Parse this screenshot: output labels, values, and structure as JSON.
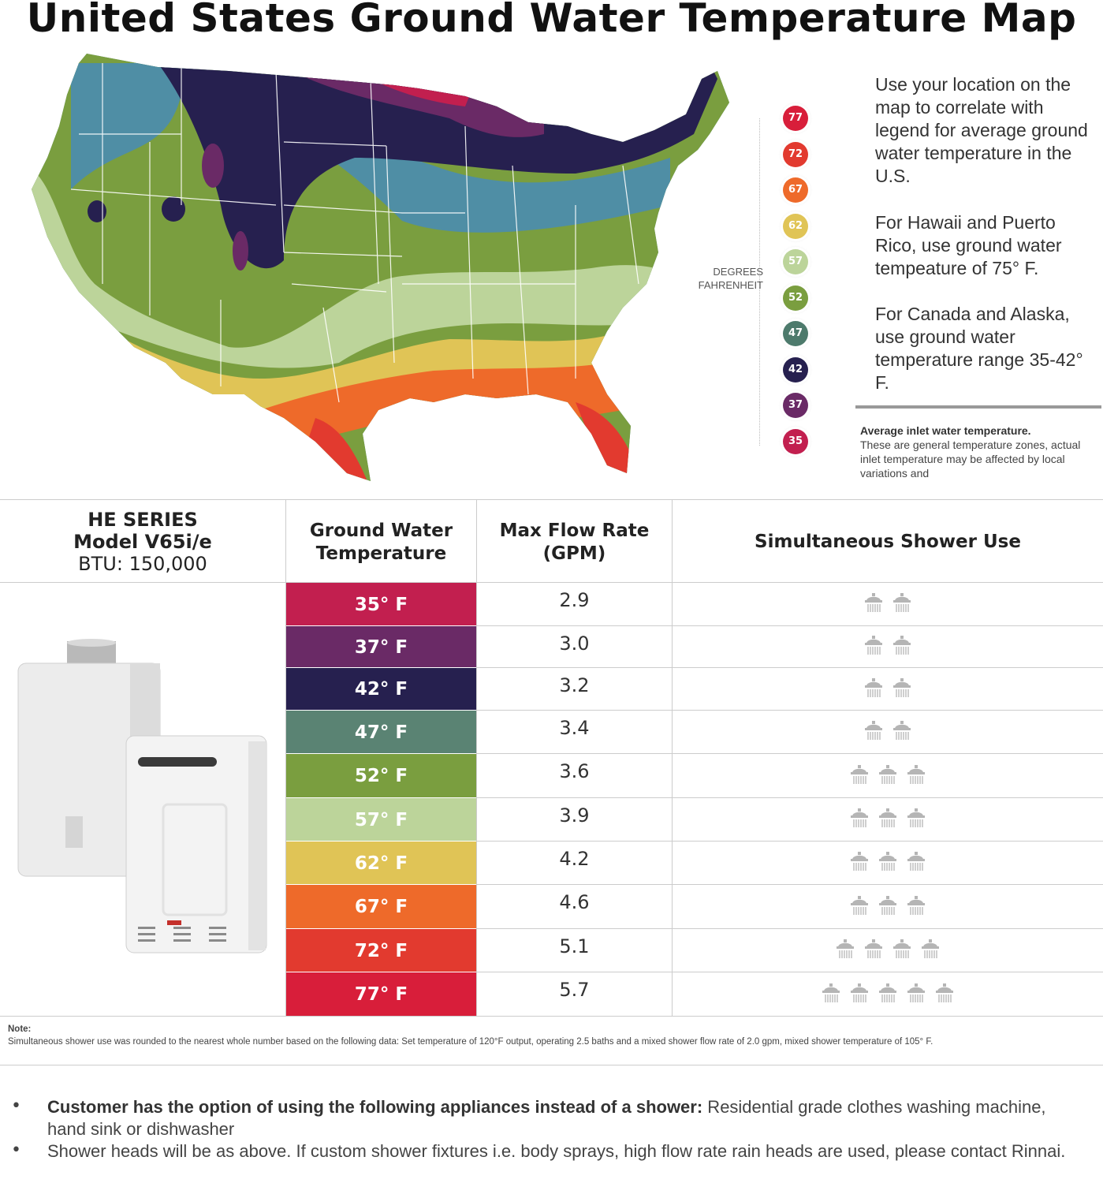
{
  "title": "United States Ground Water Temperature Map",
  "legend": {
    "label_line1": "DEGREES",
    "label_line2": "FAHRENHEIT",
    "items": [
      {
        "value": "77",
        "color": "#d81e3a"
      },
      {
        "value": "72",
        "color": "#e23a2f"
      },
      {
        "value": "67",
        "color": "#ee6a2a"
      },
      {
        "value": "62",
        "color": "#e0c456"
      },
      {
        "value": "57",
        "color": "#bcd49a"
      },
      {
        "value": "52",
        "color": "#7a9e3f"
      },
      {
        "value": "47",
        "color": "#4d7a6c"
      },
      {
        "value": "42",
        "color": "#26204f"
      },
      {
        "value": "37",
        "color": "#6a2a66"
      },
      {
        "value": "35",
        "color": "#c21f4f"
      }
    ]
  },
  "side": {
    "p1": "Use your location on the map to correlate with legend for average ground water temperature in the U.S.",
    "p2": "For Hawaii and Puerto Rico, use ground water tempeature of 75° F.",
    "p3": "For Canada and Alaska, use ground water temperature range 35-42° F.",
    "avg_bold": "Average inlet water temperature.",
    "avg_text": "These are general temperature zones, actual inlet temperature may be affected by local variations and"
  },
  "table": {
    "model_line1": "HE SERIES",
    "model_line2": "Model V65i/e",
    "model_line3": "BTU: 150,000",
    "col_temp": "Ground Water Temperature",
    "col_flow": "Max Flow Rate (GPM)",
    "col_shower": "Simultaneous Shower Use",
    "rows": [
      {
        "temp": "35° F",
        "flow": "2.9",
        "showers": 2,
        "color": "#c21f4f"
      },
      {
        "temp": "37° F",
        "flow": "3.0",
        "showers": 2,
        "color": "#6a2a66"
      },
      {
        "temp": "42° F",
        "flow": "3.2",
        "showers": 2,
        "color": "#26204f"
      },
      {
        "temp": "47° F",
        "flow": "3.4",
        "showers": 2,
        "color": "#5a8373"
      },
      {
        "temp": "52° F",
        "flow": "3.6",
        "showers": 3,
        "color": "#7a9e3f"
      },
      {
        "temp": "57° F",
        "flow": "3.9",
        "showers": 3,
        "color": "#bcd49a"
      },
      {
        "temp": "62° F",
        "flow": "4.2",
        "showers": 3,
        "color": "#e0c456"
      },
      {
        "temp": "67° F",
        "flow": "4.6",
        "showers": 3,
        "color": "#ee6a2a"
      },
      {
        "temp": "72° F",
        "flow": "5.1",
        "showers": 4,
        "color": "#e23a2f"
      },
      {
        "temp": "77° F",
        "flow": "5.7",
        "showers": 5,
        "color": "#d81e3a"
      }
    ]
  },
  "note": {
    "label": "Note:",
    "text": "Simultaneous shower use was rounded to the nearest whole number based on the following data: Set temperature of 120°F output, operating 2.5 baths and a mixed shower flow rate of 2.0 gpm, mixed shower temperature of 105° F."
  },
  "bullets": {
    "b1_bold": "Customer has the option of using the following appliances instead of a shower:",
    "b1_text": " Residential grade clothes washing machine, hand sink or dishwasher",
    "b2_text": "Shower heads will be as above. If custom shower fixtures  i.e. body sprays, high flow rate rain heads are used, please contact Rinnai."
  }
}
